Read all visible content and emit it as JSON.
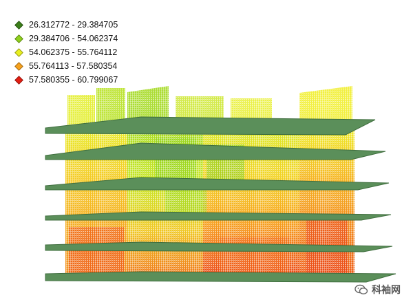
{
  "legend": {
    "items": [
      {
        "label": "26.312772 - 29.384705",
        "color": "#3b7f1a"
      },
      {
        "label": "29.384706 - 54.062374",
        "color": "#8fd11d"
      },
      {
        "label": "54.062375 - 55.764112",
        "color": "#e8ef1f"
      },
      {
        "label": "55.764113 - 57.580354",
        "color": "#f7a11c"
      },
      {
        "label": "57.580355 - 60.799067",
        "color": "#e31e12"
      }
    ]
  },
  "scene": {
    "floor_count": 6,
    "floor_color": "#5b8f5a",
    "floor_edge_color": "#3f6e3e"
  },
  "watermark": {
    "text": "科袖网",
    "icon": "wechat-icon"
  }
}
